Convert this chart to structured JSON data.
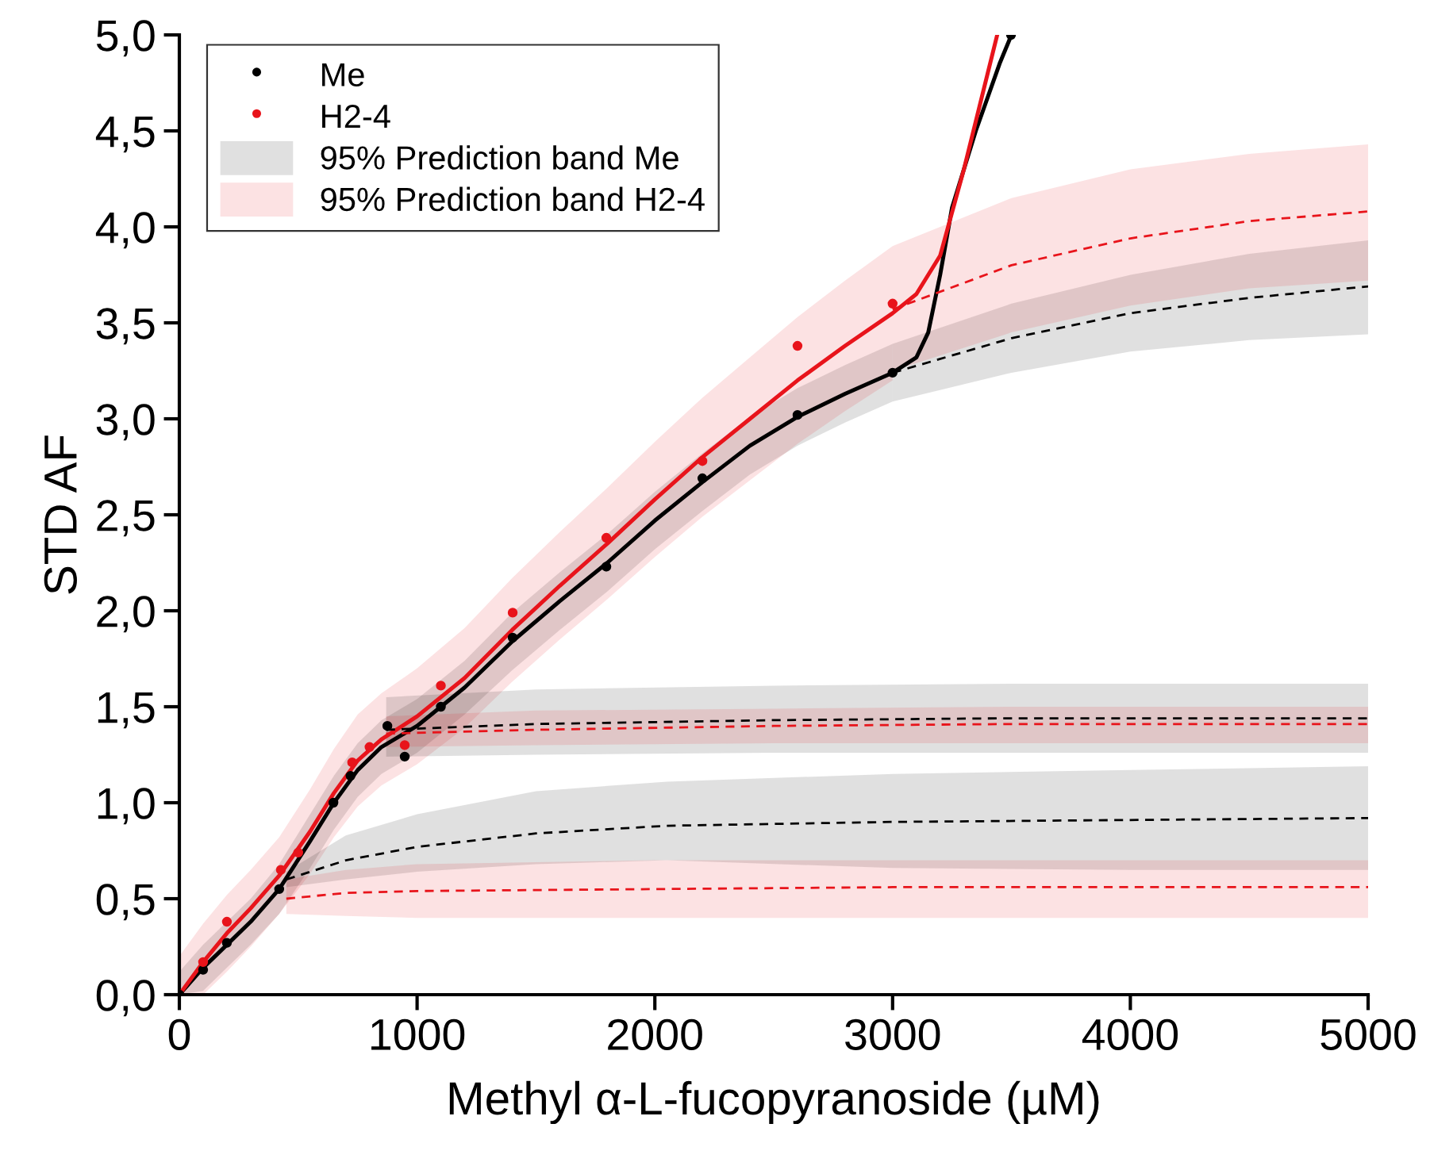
{
  "chart_data": {
    "type": "line",
    "xlabel": "Methyl α-L-fucopyranoside (µM)",
    "ylabel": "STD AF",
    "xlim": [
      0,
      5000
    ],
    "xticks": [
      0,
      1000,
      2000,
      3000,
      4000,
      5000
    ],
    "ylim": [
      0,
      5
    ],
    "yticks": [
      {
        "value": 0,
        "label": "0,0"
      },
      {
        "value": 0.5,
        "label": "0,5"
      },
      {
        "value": 1,
        "label": "1,0"
      },
      {
        "value": 1.5,
        "label": "1,5"
      },
      {
        "value": 2,
        "label": "2,0"
      },
      {
        "value": 2.5,
        "label": "2,5"
      },
      {
        "value": 3,
        "label": "3,0"
      },
      {
        "value": 3.5,
        "label": "3,5"
      },
      {
        "value": 4,
        "label": "4,0"
      },
      {
        "value": 4.5,
        "label": "4,5"
      },
      {
        "value": 5,
        "label": "5,0"
      }
    ],
    "grid": false,
    "legend": "top left",
    "series": [
      {
        "name": "95% Prediction band Me",
        "color": "#000000",
        "line_style": "solid",
        "marker": "none",
        "x": [
          0,
          100,
          200,
          300,
          420,
          550,
          650,
          750,
          850,
          1000,
          1200,
          1400,
          1600,
          1800,
          2000,
          2200,
          2400,
          2600,
          2800,
          3000,
          3100,
          3150,
          3200,
          3250,
          3350,
          3450,
          3500
        ],
        "values": [
          0,
          0.14,
          0.26,
          0.38,
          0.55,
          0.8,
          1.0,
          1.17,
          1.29,
          1.4,
          1.6,
          1.84,
          2.05,
          2.25,
          2.47,
          2.67,
          2.86,
          3.01,
          3.13,
          3.24,
          3.32,
          3.45,
          3.75,
          4.1,
          4.5,
          4.85,
          5.0
        ],
        "lower": [
          0,
          0.02,
          0.14,
          0.26,
          0.42,
          0.66,
          0.86,
          1.03,
          1.15,
          1.26,
          1.46,
          1.69,
          1.9,
          2.1,
          2.32,
          2.52,
          2.71,
          2.86,
          2.98,
          3.09,
          null,
          null,
          null,
          null,
          null,
          null,
          null
        ],
        "upper": [
          0.12,
          0.26,
          0.38,
          0.5,
          0.68,
          0.94,
          1.14,
          1.31,
          1.43,
          1.54,
          1.74,
          1.99,
          2.2,
          2.4,
          2.62,
          2.82,
          3.01,
          3.16,
          3.28,
          3.39,
          null,
          null,
          null,
          null,
          null,
          null,
          null
        ]
      },
      {
        "name": "95% Prediction band H2-4",
        "color": "#e8141b",
        "line_style": "solid",
        "marker": "none",
        "x": [
          0,
          100,
          200,
          300,
          420,
          550,
          650,
          750,
          850,
          1000,
          1200,
          1400,
          1600,
          1800,
          2000,
          2200,
          2400,
          2600,
          2800,
          3000,
          3100,
          3200,
          3300,
          3400,
          3440
        ],
        "values": [
          0,
          0.17,
          0.32,
          0.45,
          0.62,
          0.85,
          1.05,
          1.22,
          1.33,
          1.45,
          1.65,
          1.9,
          2.13,
          2.35,
          2.58,
          2.8,
          3.0,
          3.2,
          3.38,
          3.55,
          3.65,
          3.85,
          4.3,
          4.8,
          5.0
        ],
        "lower": [
          0,
          0.0,
          0.12,
          0.25,
          0.42,
          0.63,
          0.82,
          0.98,
          1.09,
          1.2,
          1.39,
          1.63,
          1.85,
          2.06,
          2.28,
          2.49,
          2.68,
          2.87,
          3.04,
          3.2,
          null,
          null,
          null,
          null,
          null
        ],
        "upper": [
          0.2,
          0.37,
          0.52,
          0.65,
          0.82,
          1.07,
          1.28,
          1.46,
          1.57,
          1.7,
          1.91,
          2.17,
          2.41,
          2.64,
          2.88,
          3.11,
          3.32,
          3.53,
          3.72,
          3.9,
          null,
          null,
          null,
          null,
          null
        ]
      },
      {
        "color": "#000000",
        "line_style": "dashed",
        "marker": "none",
        "x": [
          3000,
          3500,
          4000,
          4500,
          5000
        ],
        "values": [
          3.24,
          3.42,
          3.55,
          3.63,
          3.69
        ],
        "lower": [
          3.09,
          3.24,
          3.35,
          3.41,
          3.44
        ],
        "upper": [
          3.39,
          3.6,
          3.75,
          3.86,
          3.93
        ]
      },
      {
        "color": "#e8141b",
        "line_style": "dashed",
        "marker": "none",
        "x": [
          3000,
          3500,
          4000,
          4500,
          5000
        ],
        "values": [
          3.57,
          3.8,
          3.94,
          4.03,
          4.08
        ],
        "lower": [
          3.25,
          3.45,
          3.59,
          3.68,
          3.72
        ],
        "upper": [
          3.9,
          4.15,
          4.3,
          4.38,
          4.43
        ]
      },
      {
        "color": "#000000",
        "line_style": "dashed",
        "marker": "none",
        "x": [
          870,
          1500,
          2500,
          3500,
          5000
        ],
        "values": [
          1.38,
          1.41,
          1.43,
          1.44,
          1.44
        ],
        "lower": [
          1.24,
          1.25,
          1.26,
          1.26,
          1.26
        ],
        "upper": [
          1.55,
          1.59,
          1.61,
          1.62,
          1.62
        ]
      },
      {
        "color": "#e8141b",
        "line_style": "dashed",
        "marker": "none",
        "x": [
          870,
          1500,
          2500,
          3500,
          5000
        ],
        "values": [
          1.36,
          1.38,
          1.4,
          1.41,
          1.41
        ],
        "lower": [
          1.29,
          1.3,
          1.31,
          1.31,
          1.31
        ],
        "upper": [
          1.45,
          1.48,
          1.49,
          1.5,
          1.5
        ]
      },
      {
        "color": "#000000",
        "line_style": "dashed",
        "marker": "none",
        "x": [
          450,
          700,
          1000,
          1500,
          2050,
          3000,
          4000,
          5000
        ],
        "values": [
          0.6,
          0.7,
          0.77,
          0.84,
          0.88,
          0.9,
          0.91,
          0.92
        ],
        "lower": [
          0.56,
          0.6,
          0.64,
          0.68,
          0.7,
          0.66,
          0.65,
          0.65
        ],
        "upper": [
          0.64,
          0.83,
          0.94,
          1.06,
          1.11,
          1.15,
          1.17,
          1.19
        ]
      },
      {
        "color": "#e8141b",
        "line_style": "dashed",
        "marker": "none",
        "x": [
          450,
          700,
          1000,
          2000,
          3000,
          4000,
          5000
        ],
        "values": [
          0.5,
          0.53,
          0.54,
          0.55,
          0.56,
          0.56,
          0.56
        ],
        "lower": [
          0.42,
          0.41,
          0.4,
          0.4,
          0.4,
          0.4,
          0.4
        ],
        "upper": [
          0.6,
          0.65,
          0.68,
          0.7,
          0.7,
          0.7,
          0.7
        ]
      },
      {
        "name": "Me",
        "type": "scatter",
        "color": "#000000",
        "marker": "circle",
        "x": [
          0,
          100,
          200,
          420,
          648,
          720,
          800,
          875,
          948,
          1100,
          1402,
          1796,
          2200,
          2600,
          3000,
          3498
        ],
        "values": [
          0,
          0.13,
          0.27,
          0.55,
          1.0,
          1.14,
          null,
          1.4,
          1.24,
          1.5,
          1.86,
          2.23,
          2.69,
          3.02,
          3.24,
          5.0
        ]
      },
      {
        "name": "H2-4",
        "type": "scatter",
        "color": "#e8141b",
        "marker": "circle",
        "x": [
          100,
          200,
          427,
          500,
          727,
          800,
          948,
          1100,
          1402,
          1796,
          2200,
          2600,
          3000
        ],
        "values": [
          0.17,
          0.38,
          0.65,
          0.74,
          1.21,
          1.29,
          1.3,
          1.61,
          1.99,
          2.38,
          2.78,
          3.38,
          3.6
        ]
      }
    ]
  }
}
